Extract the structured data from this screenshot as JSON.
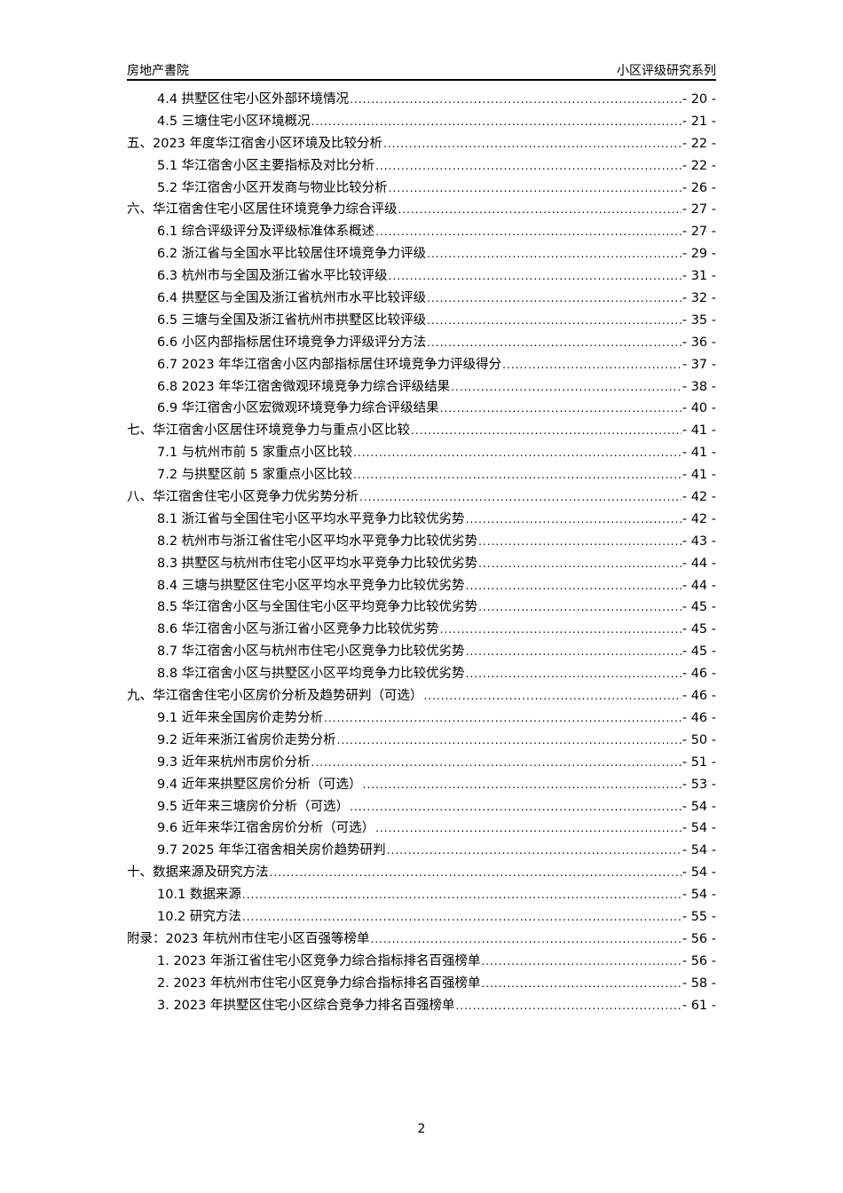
{
  "header": {
    "left": "房地产書院",
    "right": "小区评级研究系列"
  },
  "toc": [
    {
      "level": 2,
      "title": "4.4 拱墅区住宅小区外部环境情况",
      "page": "- 20 -"
    },
    {
      "level": 2,
      "title": "4.5 三塘住宅小区环境概况",
      "page": "- 21 -"
    },
    {
      "level": 1,
      "title": "五、2023 年度华江宿舍小区环境及比较分析",
      "page": "- 22 -"
    },
    {
      "level": 2,
      "title": "5.1 华江宿舍小区主要指标及对比分析",
      "page": "- 22 -"
    },
    {
      "level": 2,
      "title": "5.2 华江宿舍小区开发商与物业比较分析",
      "page": "- 26 -"
    },
    {
      "level": 1,
      "title": "六、华江宿舍住宅小区居住环境竞争力综合评级",
      "page": "- 27 -"
    },
    {
      "level": 2,
      "title": "6.1 综合评级评分及评级标准体系概述",
      "page": "- 27 -"
    },
    {
      "level": 2,
      "title": "6.2 浙江省与全国水平比较居住环境竞争力评级",
      "page": "- 29 -"
    },
    {
      "level": 2,
      "title": "6.3 杭州市与全国及浙江省水平比较评级",
      "page": "- 31 -"
    },
    {
      "level": 2,
      "title": "6.4 拱墅区与全国及浙江省杭州市水平比较评级",
      "page": "- 32 -"
    },
    {
      "level": 2,
      "title": "6.5 三塘与全国及浙江省杭州市拱墅区比较评级",
      "page": "- 35 -"
    },
    {
      "level": 2,
      "title": "6.6 小区内部指标居住环境竞争力评级评分方法",
      "page": "- 36 -"
    },
    {
      "level": 2,
      "title": "6.7 2023 年华江宿舍小区内部指标居住环境竞争力评级得分",
      "page": "- 37 -"
    },
    {
      "level": 2,
      "title": "6.8 2023 年华江宿舍微观环境竞争力综合评级结果",
      "page": "- 38 -"
    },
    {
      "level": 2,
      "title": "6.9 华江宿舍小区宏微观环境竞争力综合评级结果",
      "page": "- 40 -"
    },
    {
      "level": 1,
      "title": "七、华江宿舍小区居住环境竞争力与重点小区比较",
      "page": "- 41 -"
    },
    {
      "level": 2,
      "title": "7.1 与杭州市前 5 家重点小区比较",
      "page": "- 41 -"
    },
    {
      "level": 2,
      "title": "7.2 与拱墅区前 5 家重点小区比较",
      "page": "- 41 -"
    },
    {
      "level": 1,
      "title": "八、华江宿舍住宅小区竞争力优劣势分析",
      "page": "- 42 -"
    },
    {
      "level": 2,
      "title": "8.1 浙江省与全国住宅小区平均水平竞争力比较优劣势",
      "page": "- 42 -"
    },
    {
      "level": 2,
      "title": "8.2 杭州市与浙江省住宅小区平均水平竞争力比较优劣势",
      "page": "- 43 -"
    },
    {
      "level": 2,
      "title": "8.3 拱墅区与杭州市住宅小区平均水平竞争力比较优劣势",
      "page": "- 44 -"
    },
    {
      "level": 2,
      "title": "8.4 三塘与拱墅区住宅小区平均水平竞争力比较优劣势",
      "page": "- 44 -"
    },
    {
      "level": 2,
      "title": "8.5 华江宿舍小区与全国住宅小区平均竞争力比较优劣势",
      "page": "- 45 -"
    },
    {
      "level": 2,
      "title": "8.6 华江宿舍小区与浙江省小区竞争力比较优劣势",
      "page": "- 45 -"
    },
    {
      "level": 2,
      "title": "8.7 华江宿舍小区与杭州市住宅小区竞争力比较优劣势",
      "page": "- 45 -"
    },
    {
      "level": 2,
      "title": "8.8 华江宿舍小区与拱墅区小区平均竞争力比较优劣势",
      "page": "- 46 -"
    },
    {
      "level": 1,
      "title": "九、华江宿舍住宅小区房价分析及趋势研判（可选）",
      "page": "- 46 -"
    },
    {
      "level": 2,
      "title": "9.1 近年来全国房价走势分析",
      "page": "- 46 -"
    },
    {
      "level": 2,
      "title": "9.2 近年来浙江省房价走势分析",
      "page": "- 50 -"
    },
    {
      "level": 2,
      "title": "9.3 近年来杭州市房价分析",
      "page": "- 51 -"
    },
    {
      "level": 2,
      "title": "9.4 近年来拱墅区房价分析（可选）",
      "page": "- 53 -"
    },
    {
      "level": 2,
      "title": "9.5 近年来三塘房价分析（可选）",
      "page": "- 54 -"
    },
    {
      "level": 2,
      "title": "9.6 近年来华江宿舍房价分析（可选）",
      "page": "- 54 -"
    },
    {
      "level": 2,
      "title": "9.7 2025 年华江宿舍相关房价趋势研判",
      "page": "- 54 -"
    },
    {
      "level": 1,
      "title": "十、数据来源及研究方法",
      "page": "- 54 -"
    },
    {
      "level": 2,
      "title": "10.1 数据来源",
      "page": "- 54 -"
    },
    {
      "level": 2,
      "title": "10.2 研究方法",
      "page": "- 55 -"
    },
    {
      "level": 1,
      "title": "附录：2023 年杭州市住宅小区百强等榜单",
      "page": "- 56 -"
    },
    {
      "level": 2,
      "title": "1. 2023 年浙江省住宅小区竞争力综合指标排名百强榜单",
      "page": "- 56 -"
    },
    {
      "level": 2,
      "title": "2. 2023 年杭州市住宅小区竞争力综合指标排名百强榜单",
      "page": "- 58 -"
    },
    {
      "level": 2,
      "title": "3. 2023 年拱墅区住宅小区综合竞争力排名百强榜单",
      "page": "- 61 -"
    }
  ],
  "footer": {
    "page_number": "2"
  }
}
